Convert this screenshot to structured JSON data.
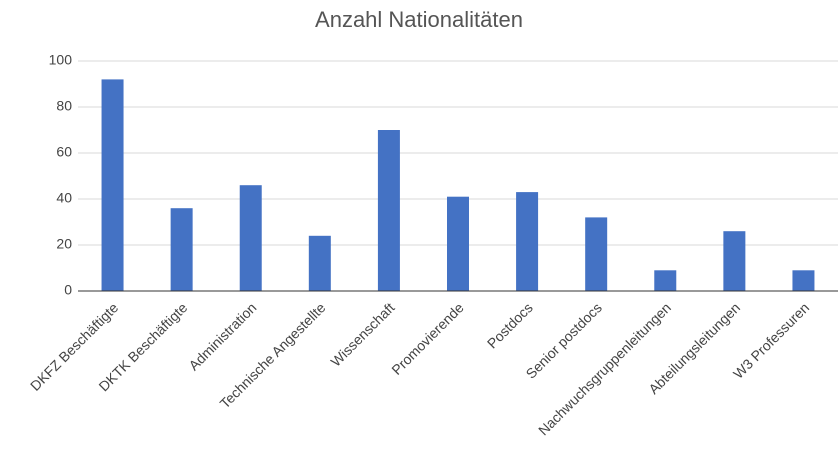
{
  "chart_data": {
    "type": "bar",
    "title": "Anzahl Nationalitäten",
    "categories": [
      "DKFZ Beschäftigte",
      "DKTK Beschäftigte",
      "Administration",
      "Technische Angestellte",
      "Wissenschaft",
      "Promovierende",
      "Postdocs",
      "Senior postdocs",
      "Nachwuchsgruppenleitungen",
      "Abteilungsleitungen",
      "W3 Professuren"
    ],
    "values": [
      92,
      36,
      46,
      24,
      70,
      41,
      43,
      32,
      9,
      26,
      9
    ],
    "color": "#4472c4",
    "ylim": [
      0,
      100
    ],
    "yticks": [
      0,
      20,
      40,
      60,
      80,
      100
    ],
    "grid": true
  }
}
